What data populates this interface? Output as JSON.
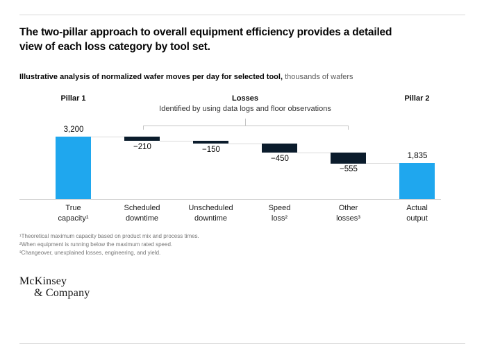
{
  "title": "The two-pillar approach to overall equipment efficiency provides a detailed\nview of each loss category by tool set.",
  "subtitle": {
    "bold": "Illustrative analysis of normalized wafer moves per day for selected tool,",
    "regular": " thousands of wafers"
  },
  "header": {
    "pillar1": "Pillar 1",
    "losses_title": "Losses",
    "losses_subtitle": "Identified by using data logs and floor observations",
    "pillar2": "Pillar 2"
  },
  "chart_data": {
    "type": "bar",
    "subtype": "waterfall",
    "title": "Illustrative analysis of normalized wafer moves per day for selected tool",
    "unit": "thousands of wafers",
    "categories": [
      "True\ncapacity¹",
      "Scheduled\ndowntime",
      "Unscheduled\ndowntime",
      "Speed\nloss²",
      "Other\nlosses³",
      "Actual\noutput"
    ],
    "values": [
      3200,
      -210,
      -150,
      -450,
      -555,
      1835
    ],
    "labels": [
      "3,200",
      "−210",
      "−150",
      "−450",
      "−555",
      "1,835"
    ],
    "bar_types": [
      "total",
      "loss",
      "loss",
      "loss",
      "loss",
      "total"
    ],
    "ylim": [
      0,
      3200
    ],
    "legend": "none",
    "grid": "off",
    "colors": {
      "total": "#1FA7EE",
      "loss": "#0B1C2C",
      "connector": "#d9d9d9",
      "axis": "#cfcfcf"
    }
  },
  "footnotes": [
    "¹Theoretical maximum capacity based on product mix and process times.",
    "²When equipment is running below the maximum rated speed.",
    "³Changeover, unexplained losses, engineering, and yield."
  ],
  "logo": {
    "line1": "McKinsey",
    "line2": "& Company"
  }
}
